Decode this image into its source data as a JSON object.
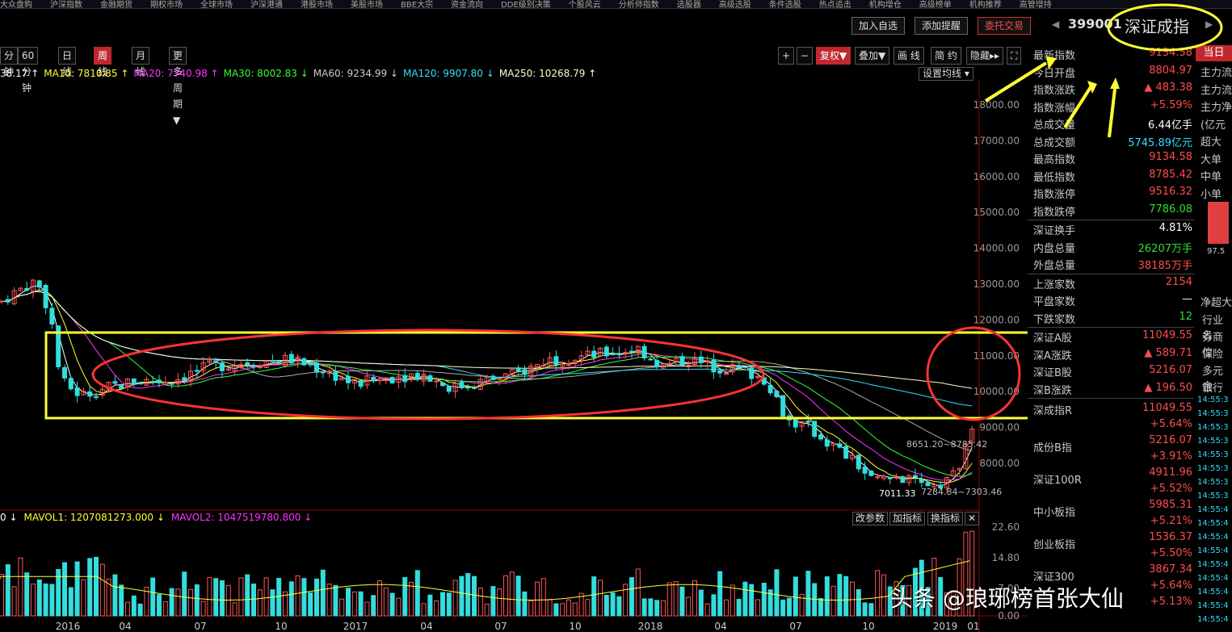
{
  "top_menu": [
    "大众盘购",
    "沪深指数",
    "金融期货",
    "期权市场",
    "全球市场",
    "沪深港通",
    "港股市场",
    "美股市场",
    "BBE大宗",
    "资金流向",
    "DDE级别决策",
    "个股风云",
    "分析师指数",
    "选股器",
    "高级选股",
    "条件选股",
    "热点追击",
    "机构增仓",
    "高级榜单",
    "机构推荐",
    "高管增持"
  ],
  "header": {
    "add_watch": "加入自选",
    "add_alert": "添加提醒",
    "trade": "委托交易",
    "code": "399001",
    "name": "深证成指",
    "prev_arrow": "◀",
    "next_arrow": "▶"
  },
  "period_tabs": [
    {
      "label": "分钟"
    },
    {
      "label": "60分钟"
    },
    {
      "label": "日 线"
    },
    {
      "label": "周 线",
      "active": true
    },
    {
      "label": "月 线"
    },
    {
      "label": "更多周期▼"
    }
  ],
  "toolbar": [
    {
      "label": "+"
    },
    {
      "label": "−"
    },
    {
      "label": "复权▼",
      "active": true
    },
    {
      "label": "叠加▼"
    },
    {
      "label": "画 线"
    },
    {
      "label": "简 约"
    },
    {
      "label": "隐藏▸▸"
    },
    {
      "label": "⛶"
    }
  ],
  "ma_legend": [
    {
      "text": "38.17 ↑",
      "color": "#ffffff"
    },
    {
      "text": "MA10: 7810.85 ↑",
      "color": "#ffff33"
    },
    {
      "text": "MA20: 7740.98 ↑",
      "color": "#ff33ff"
    },
    {
      "text": "MA30: 8002.83 ↓",
      "color": "#33ff33"
    },
    {
      "text": "MA60: 9234.99 ↓",
      "color": "#cccccc"
    },
    {
      "text": "MA120: 9907.80 ↓",
      "color": "#33ddff"
    },
    {
      "text": "MA250: 10268.79 ↑",
      "color": "#ffffcc"
    }
  ],
  "set_ma_label": "设置均线 ▾",
  "price_axis": [
    "18000.00",
    "17000.00",
    "16000.00",
    "15000.00",
    "14000.00",
    "13000.00",
    "12000.00",
    "11000.00",
    "10000.00",
    "9000.00",
    "8000.00"
  ],
  "price_annotations": {
    "range_label": "8651.20~8785.42",
    "low_label": "7011.33",
    "low_range": "7284.84~7303.46"
  },
  "vol_axis": [
    "22.60",
    "14.80",
    "7.00",
    "0.00"
  ],
  "time_axis": [
    "2016",
    "04",
    "07",
    "10",
    "2017",
    "04",
    "07",
    "10",
    "2018",
    "04",
    "07",
    "10",
    "2019",
    "01"
  ],
  "vol_legend": [
    {
      "text": "0 ↓",
      "color": "#ffffff"
    },
    {
      "text": "MAVOL1: 1207081273.000 ↓",
      "color": "#ffff33"
    },
    {
      "text": "MAVOL2: 1047519780.800 ↓",
      "color": "#ff33ff"
    }
  ],
  "vol_buttons": [
    "改参数",
    "加指标",
    "换指标",
    "✕"
  ],
  "stats_a": [
    {
      "label": "最新指数",
      "value": "9134.58",
      "color": "red"
    },
    {
      "label": "今日开盘",
      "value": "8804.97",
      "color": "red"
    },
    {
      "label": "指数涨跌",
      "value": "▲ 483.38",
      "color": "red"
    },
    {
      "label": "指数涨幅",
      "value": "+5.59%",
      "color": "red"
    },
    {
      "label": "总成交量",
      "value": "6.44亿手",
      "color": "white"
    },
    {
      "label": "总成交额",
      "value": "5745.89亿元",
      "color": "cyan"
    },
    {
      "label": "最高指数",
      "value": "9134.58",
      "color": "red"
    },
    {
      "label": "最低指数",
      "value": "8785.42",
      "color": "red"
    },
    {
      "label": "指数涨停",
      "value": "9516.32",
      "color": "red"
    },
    {
      "label": "指数跌停",
      "value": "7786.08",
      "color": "green"
    }
  ],
  "stats_b": [
    {
      "label": "深证换手",
      "value": "4.81%",
      "color": "white"
    },
    {
      "label": "内盘总量",
      "value": "26207万手",
      "color": "green"
    },
    {
      "label": "外盘总量",
      "value": "38185万手",
      "color": "red"
    }
  ],
  "stats_c": [
    {
      "label": "上涨家数",
      "value": "2154",
      "color": "red"
    },
    {
      "label": "平盘家数",
      "value": "—",
      "color": "white"
    },
    {
      "label": "下跌家数",
      "value": "12",
      "color": "green"
    }
  ],
  "stats_d": [
    {
      "label": "深证A股",
      "value": "11049.55",
      "color": "red"
    },
    {
      "label": "深A涨跌",
      "value": "▲ 589.71",
      "color": "red"
    },
    {
      "label": "深证B股",
      "value": "5216.07",
      "color": "red"
    },
    {
      "label": "深B涨跌",
      "value": "▲ 196.50",
      "color": "red"
    }
  ],
  "related": [
    {
      "label": "深成指R",
      "value": "11049.55",
      "change": "+5.64%"
    },
    {
      "label": "成份B指",
      "value": "5216.07",
      "change": "+3.91%"
    },
    {
      "label": "深证100R",
      "value": "4911.96",
      "change": "+5.52%"
    },
    {
      "label": "中小板指",
      "value": "5985.31",
      "change": "+5.21%"
    },
    {
      "label": "创业板指",
      "value": "1536.37",
      "change": "+5.50%"
    },
    {
      "label": "深证300",
      "value": "3867.34",
      "change": "+5.64%"
    },
    {
      "label": "",
      "value": "",
      "change": "+5.13%"
    }
  ],
  "far_right": {
    "tab": "当日",
    "labels": [
      "主力流",
      "主力流",
      "主力净",
      "(亿元",
      "超大",
      "大单",
      "中单",
      "小单"
    ],
    "bar_value": "97.5",
    "net_label": "净超大",
    "industry_labels": [
      "行业名",
      "券商信",
      "保险",
      "多元金",
      "银行"
    ],
    "times": [
      "14:55:3",
      "14:55:3",
      "14:55:3",
      "14:55:3",
      "14:55:3",
      "14:55:3",
      "14:55:3",
      "14:55:3",
      "14:55:4",
      "14:55:4",
      "14:55:4",
      "14:55:4",
      "14:55:4",
      "14:55:4",
      "14:55:4",
      "14:55:4",
      "14:55:4"
    ]
  },
  "watermark": "头条 @琅琊榜首张大仙"
}
